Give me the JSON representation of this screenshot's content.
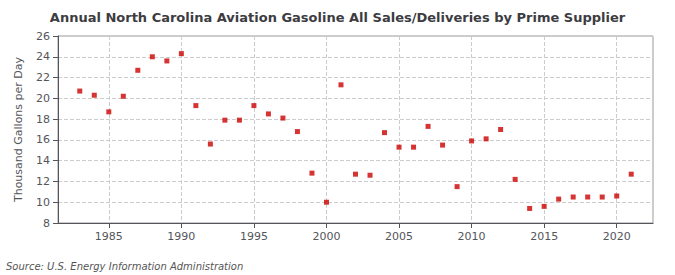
{
  "chart_data": {
    "type": "scatter",
    "title": "Annual North Carolina Aviation Gasoline All Sales/Deliveries by Prime Supplier",
    "ylabel": "Thousand Gallons per Day",
    "annotation": "Source: U.S. Energy Information Administration",
    "x": [
      1983,
      1984,
      1985,
      1986,
      1987,
      1988,
      1989,
      1990,
      1991,
      1992,
      1993,
      1994,
      1995,
      1996,
      1997,
      1998,
      1999,
      2000,
      2001,
      2002,
      2003,
      2004,
      2005,
      2006,
      2007,
      2008,
      2009,
      2010,
      2011,
      2012,
      2013,
      2014,
      2015,
      2016,
      2017,
      2018,
      2019,
      2020,
      2021
    ],
    "values": [
      20.7,
      20.3,
      18.7,
      20.2,
      22.7,
      24.0,
      23.6,
      24.3,
      19.3,
      15.6,
      17.9,
      17.9,
      19.3,
      18.5,
      18.1,
      16.8,
      12.8,
      10.0,
      21.3,
      12.7,
      12.6,
      16.7,
      15.3,
      15.3,
      17.3,
      15.5,
      11.5,
      15.9,
      16.1,
      17.0,
      12.2,
      9.4,
      9.6,
      10.3,
      10.5,
      10.5,
      10.5,
      10.6,
      12.7
    ],
    "color": "#cc0000",
    "marker": "square",
    "xlim": [
      1981.5,
      2022.5
    ],
    "xticks": [
      1985,
      1990,
      1995,
      2000,
      2005,
      2010,
      2015,
      2020
    ],
    "ylim": [
      8,
      26
    ],
    "yticks": [
      8,
      10,
      12,
      14,
      16,
      18,
      20,
      22,
      24,
      26
    ],
    "grid": true
  }
}
